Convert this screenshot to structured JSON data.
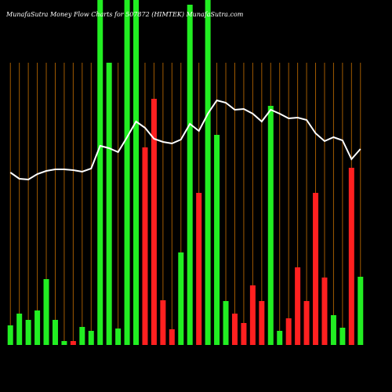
{
  "chart_data": {
    "type": "bar",
    "title": "MunafaSutra Money Flow Charts for 507872 (HIMTEK) MunafaSutra.com",
    "categories": [
      null,
      null,
      null,
      null,
      null,
      null,
      null,
      null,
      null,
      null,
      null,
      null,
      null,
      null,
      null,
      null,
      null,
      null,
      null,
      null,
      null,
      null,
      null,
      null,
      null,
      null,
      null,
      null,
      null,
      null,
      null,
      null,
      null,
      null,
      null,
      null,
      null,
      null,
      null,
      null
    ],
    "values": [
      25,
      40,
      32,
      44,
      84,
      32,
      5,
      5,
      23,
      18,
      440,
      360,
      21,
      440,
      440,
      252,
      314,
      57,
      20,
      118,
      434,
      194,
      440,
      268,
      56,
      40,
      28,
      76,
      56,
      305,
      18,
      34,
      99,
      56,
      194,
      86,
      38,
      22,
      226,
      87
    ],
    "colors": [
      "#22ee22",
      "#22ee22",
      "#22ee22",
      "#22ee22",
      "#22ee22",
      "#22ee22",
      "#22ee22",
      "#ff2020",
      "#22ee22",
      "#22ee22",
      "#22ee22",
      "#22ee22",
      "#22ee22",
      "#22ee22",
      "#22ee22",
      "#ff2020",
      "#ff2020",
      "#ff2020",
      "#ff2020",
      "#22ee22",
      "#22ee22",
      "#ff2020",
      "#22ee22",
      "#22ee22",
      "#22ee22",
      "#ff2020",
      "#ff2020",
      "#ff2020",
      "#ff2020",
      "#22ee22",
      "#22ee22",
      "#ff2020",
      "#ff2020",
      "#ff2020",
      "#ff2020",
      "#ff2020",
      "#22ee22",
      "#22ee22",
      "#ff2020",
      "#22ee22"
    ],
    "line_values": [
      220,
      212,
      211,
      218,
      222,
      224,
      224,
      223,
      221,
      225,
      254,
      251,
      246,
      265,
      285,
      277,
      263,
      259,
      257,
      262,
      282,
      273,
      295,
      312,
      309,
      300,
      301,
      295,
      285,
      300,
      295,
      289,
      290,
      287,
      270,
      260,
      265,
      261,
      237,
      250
    ],
    "line_color": "#ffffff",
    "grid_color": "#a05a00",
    "ylim": [
      0,
      440
    ]
  }
}
